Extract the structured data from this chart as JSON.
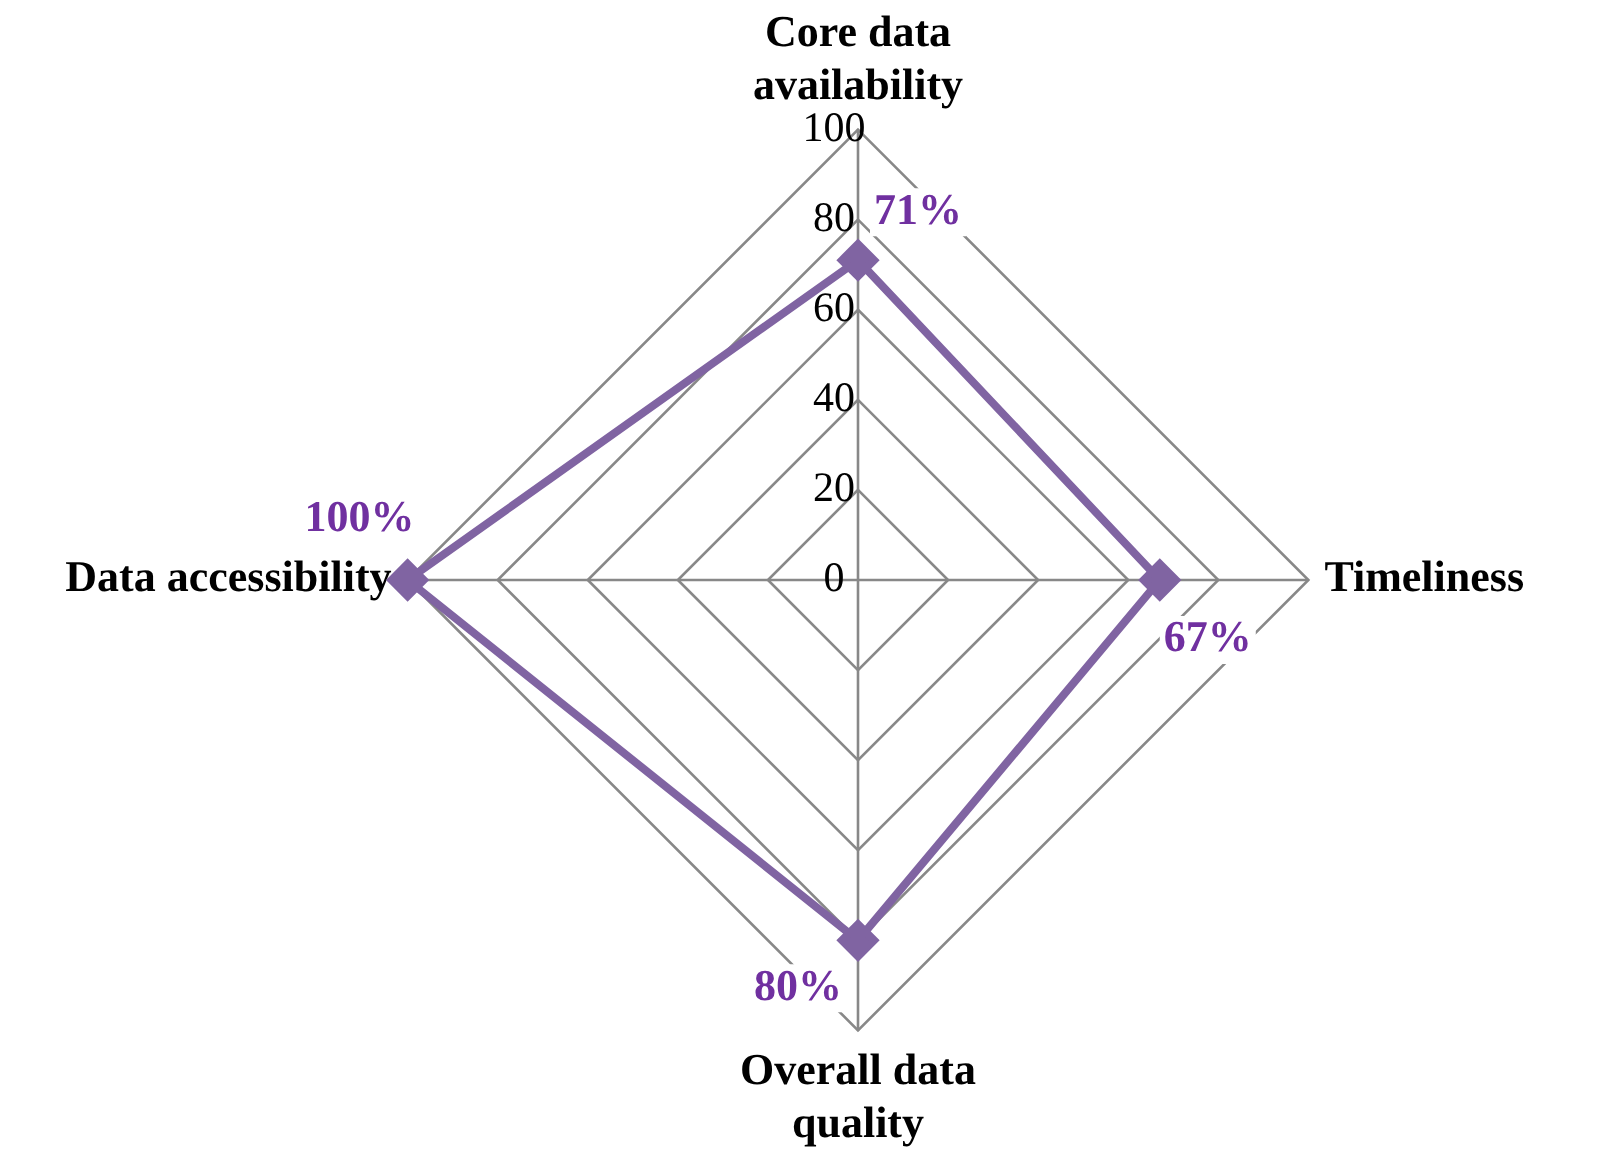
{
  "chart_data": {
    "type": "radar",
    "categories": [
      "Core data availability",
      "Timeliness",
      "Overall data quality",
      "Data accessibility"
    ],
    "series": [
      {
        "color": "#8064a2",
        "values": [
          71,
          67,
          80,
          100
        ],
        "value_labels": [
          "71%",
          "67%",
          "80%",
          "100%"
        ]
      }
    ],
    "ylim": [
      0,
      100
    ],
    "yticks": [
      0,
      20,
      40,
      60,
      80,
      100
    ],
    "grid": true,
    "legend": false,
    "marker": "diamond",
    "line_style": "solid"
  }
}
